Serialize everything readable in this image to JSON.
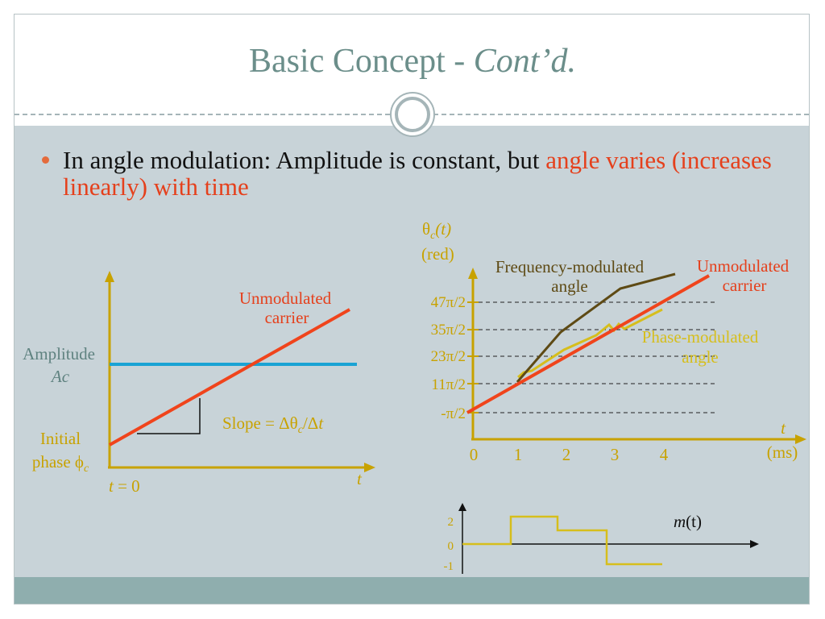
{
  "slide": {
    "title_main": "Basic Concept - ",
    "title_italic": "Cont’d.",
    "bullet_black": "In angle modulation: Amplitude is constant, but ",
    "bullet_red": "angle varies (increases linearly) with time"
  },
  "left_chart": {
    "amplitude_label": "Amplitude",
    "amplitude_symbol": "Ac",
    "carrier_label_1": "Unmodulated",
    "carrier_label_2": "carrier",
    "slope_label": "Slope = Δθ",
    "slope_sub": "c",
    "slope_tail": "/Δ",
    "slope_t": "t",
    "initial_1": "Initial",
    "initial_2": "phase ϕ",
    "initial_sub": "c",
    "t_zero": "t",
    "t_zero_tail": " = 0",
    "x_axis": "t"
  },
  "right_chart": {
    "y_label_top": "θ",
    "y_label_sub": "c",
    "y_label_paren": "(t)",
    "y_label_unit": "(red)",
    "x_label": "t",
    "x_unit": "(ms)",
    "y_ticks": [
      "47π/2",
      "35π/2",
      "23π/2",
      "11π/2",
      "-π/2"
    ],
    "x_ticks": [
      "0",
      "1",
      "2",
      "3",
      "4"
    ],
    "fm_label_1": "Frequency-modulated",
    "fm_label_2": "angle",
    "carrier_label_1": "Unmodulated",
    "carrier_label_2": "carrier",
    "pm_label_1": "Phase-modulated",
    "pm_label_2": "angle"
  },
  "message_chart": {
    "label_m": "m",
    "label_paren": "(t)",
    "y_ticks": [
      "2",
      "0",
      "-1"
    ]
  },
  "colors": {
    "axis": "#c8a200",
    "carrier": "#f0441c",
    "amplitude": "#1aa3d4",
    "fm": "#5e4a14",
    "pm": "#d6be1c",
    "title": "#6b8e8a"
  }
}
